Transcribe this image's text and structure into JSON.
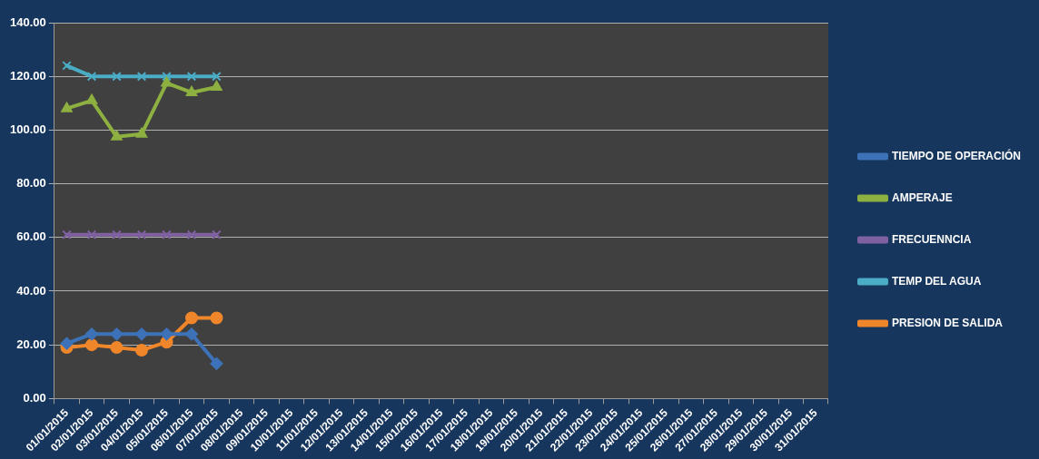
{
  "chart_data": {
    "type": "line",
    "categories": [
      "01/01/2015",
      "02/01/2015",
      "03/01/2015",
      "04/01/2015",
      "05/01/2015",
      "06/01/2015",
      "07/01/2015",
      "08/01/2015",
      "09/01/2015",
      "10/01/2015",
      "11/01/2015",
      "12/01/2015",
      "13/01/2015",
      "14/01/2015",
      "15/01/2015",
      "16/01/2015",
      "17/01/2015",
      "18/01/2015",
      "19/01/2015",
      "20/01/2015",
      "21/01/2015",
      "22/01/2015",
      "23/01/2015",
      "24/01/2015",
      "25/01/2015",
      "26/01/2015",
      "27/01/2015",
      "28/01/2015",
      "29/01/2015",
      "30/01/2015",
      "31/01/2015"
    ],
    "series": [
      {
        "name": "TIEMPO DE OPERACIÓN",
        "color": "#3d72b8",
        "marker": "diamond",
        "values": [
          20.5,
          24,
          24,
          24,
          24,
          24,
          13,
          null,
          null,
          null,
          null,
          null,
          null,
          null,
          null,
          null,
          null,
          null,
          null,
          null,
          null,
          null,
          null,
          null,
          null,
          null,
          null,
          null,
          null,
          null,
          null
        ]
      },
      {
        "name": "AMPERAJE",
        "color": "#8db040",
        "marker": "triangle",
        "values": [
          108,
          111,
          97.5,
          98.5,
          117.5,
          114,
          116,
          null,
          null,
          null,
          null,
          null,
          null,
          null,
          null,
          null,
          null,
          null,
          null,
          null,
          null,
          null,
          null,
          null,
          null,
          null,
          null,
          null,
          null,
          null,
          null
        ]
      },
      {
        "name": "FRECUENNCIA",
        "color": "#7f60a0",
        "marker": "cross",
        "values": [
          61,
          61,
          61,
          61,
          61,
          61,
          61,
          null,
          null,
          null,
          null,
          null,
          null,
          null,
          null,
          null,
          null,
          null,
          null,
          null,
          null,
          null,
          null,
          null,
          null,
          null,
          null,
          null,
          null,
          null,
          null
        ]
      },
      {
        "name": "TEMP DEL AGUA",
        "color": "#4bacc6",
        "marker": "cross",
        "values": [
          124,
          120,
          120,
          120,
          120,
          120,
          120,
          null,
          null,
          null,
          null,
          null,
          null,
          null,
          null,
          null,
          null,
          null,
          null,
          null,
          null,
          null,
          null,
          null,
          null,
          null,
          null,
          null,
          null,
          null,
          null
        ]
      },
      {
        "name": "PRESION DE SALIDA",
        "color": "#f0862a",
        "marker": "circle",
        "values": [
          19,
          20,
          19,
          18,
          21,
          30,
          30,
          null,
          null,
          null,
          null,
          null,
          null,
          null,
          null,
          null,
          null,
          null,
          null,
          null,
          null,
          null,
          null,
          null,
          null,
          null,
          null,
          null,
          null,
          null,
          null
        ]
      }
    ],
    "ylim": [
      0,
      140
    ],
    "yticks": [
      {
        "value": 0,
        "label": "0.00"
      },
      {
        "value": 20,
        "label": "20.00"
      },
      {
        "value": 40,
        "label": "40.00"
      },
      {
        "value": 60,
        "label": "60.00"
      },
      {
        "value": 80,
        "label": "80.00"
      },
      {
        "value": 100,
        "label": "100.00"
      },
      {
        "value": 120,
        "label": "120.00"
      },
      {
        "value": 140,
        "label": "140.00"
      }
    ],
    "grid": "y",
    "legend": "right",
    "line_style": "solid"
  }
}
